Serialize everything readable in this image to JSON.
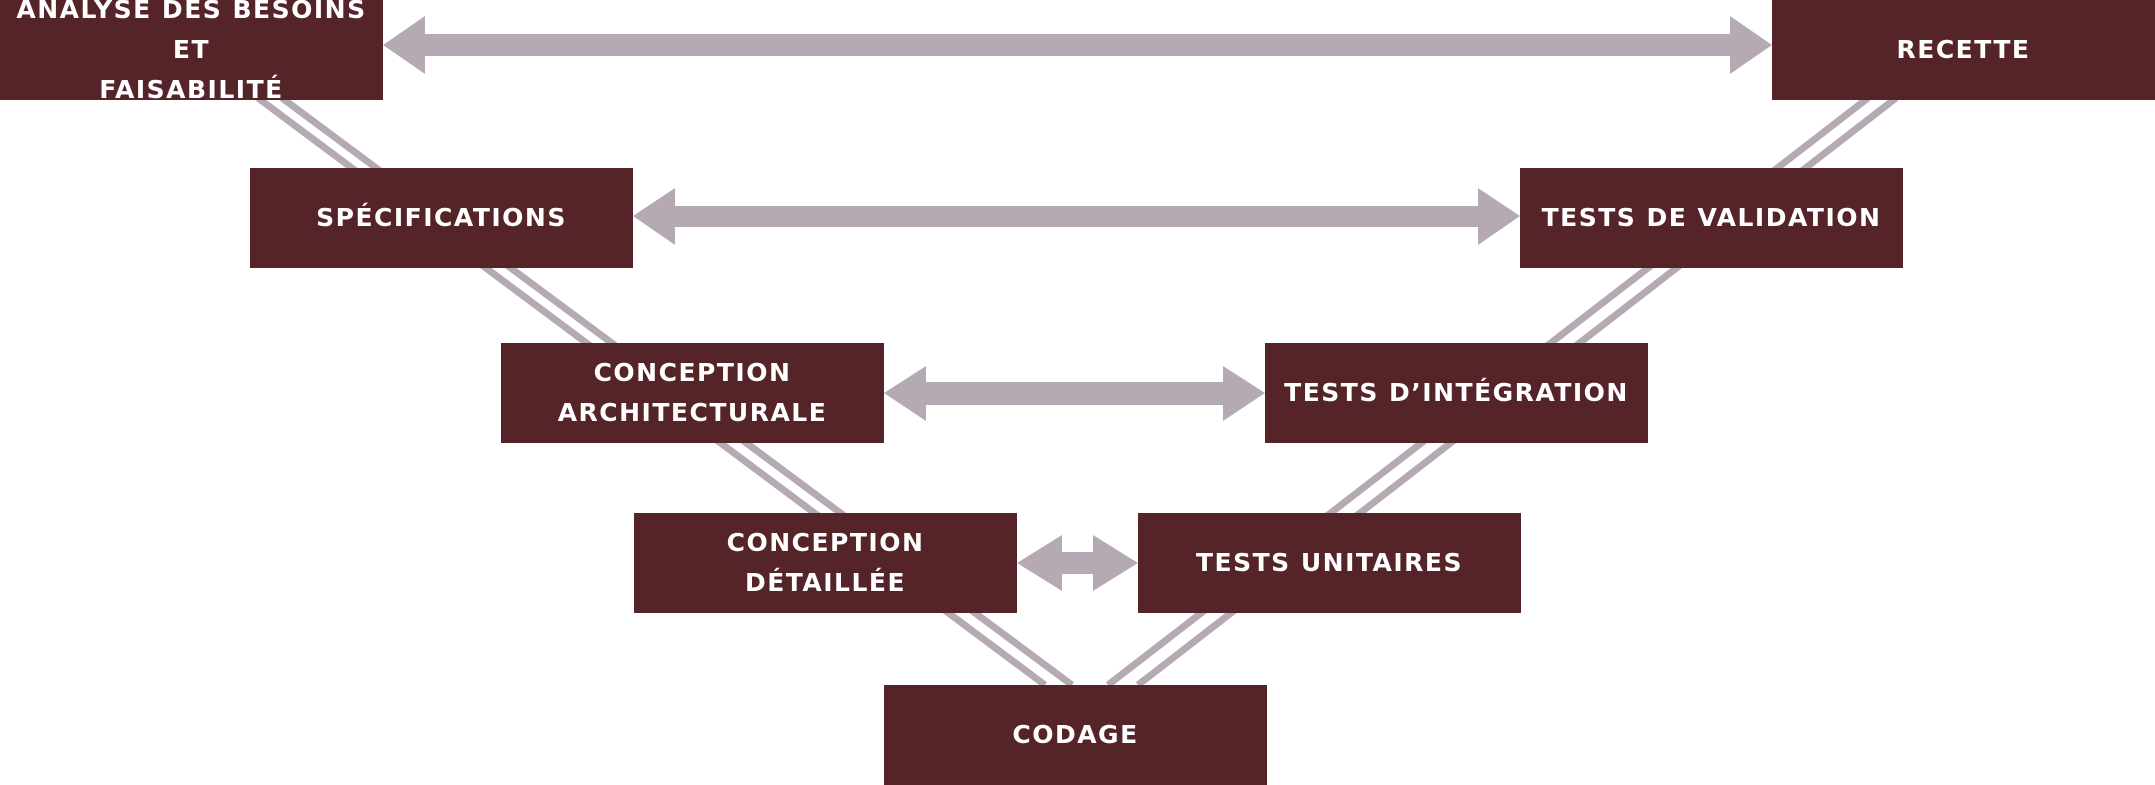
{
  "diagram": {
    "title": "",
    "colors": {
      "box_fill": "#552429",
      "box_text": "#ffffff",
      "connector": "#b5aab3"
    },
    "stages": [
      {
        "id": "analyse",
        "label": "ANALYSE DES BESOINS ET\nFAISABILITÉ",
        "branch": "left",
        "level": 1
      },
      {
        "id": "specs",
        "label": "SPÉCIFICATIONS",
        "branch": "left",
        "level": 2
      },
      {
        "id": "conc_arch",
        "label": "CONCEPTION\nARCHITECTURALE",
        "branch": "left",
        "level": 3
      },
      {
        "id": "conc_det",
        "label": "CONCEPTION\nDÉTAILLÉE",
        "branch": "left",
        "level": 4
      },
      {
        "id": "codage",
        "label": "CODAGE",
        "branch": "bottom",
        "level": 5
      },
      {
        "id": "tests_unit",
        "label": "TESTS UNITAIRES",
        "branch": "right",
        "level": 4
      },
      {
        "id": "tests_integ",
        "label": "TESTS D’INTÉGRATION",
        "branch": "right",
        "level": 3
      },
      {
        "id": "tests_valid",
        "label": "TESTS DE VALIDATION",
        "branch": "right",
        "level": 2
      },
      {
        "id": "recette",
        "label": "RECETTE",
        "branch": "right",
        "level": 1
      }
    ],
    "correspondences": [
      {
        "from": "analyse",
        "to": "recette"
      },
      {
        "from": "specs",
        "to": "tests_valid"
      },
      {
        "from": "conc_arch",
        "to": "tests_integ"
      },
      {
        "from": "conc_det",
        "to": "tests_unit"
      }
    ]
  }
}
